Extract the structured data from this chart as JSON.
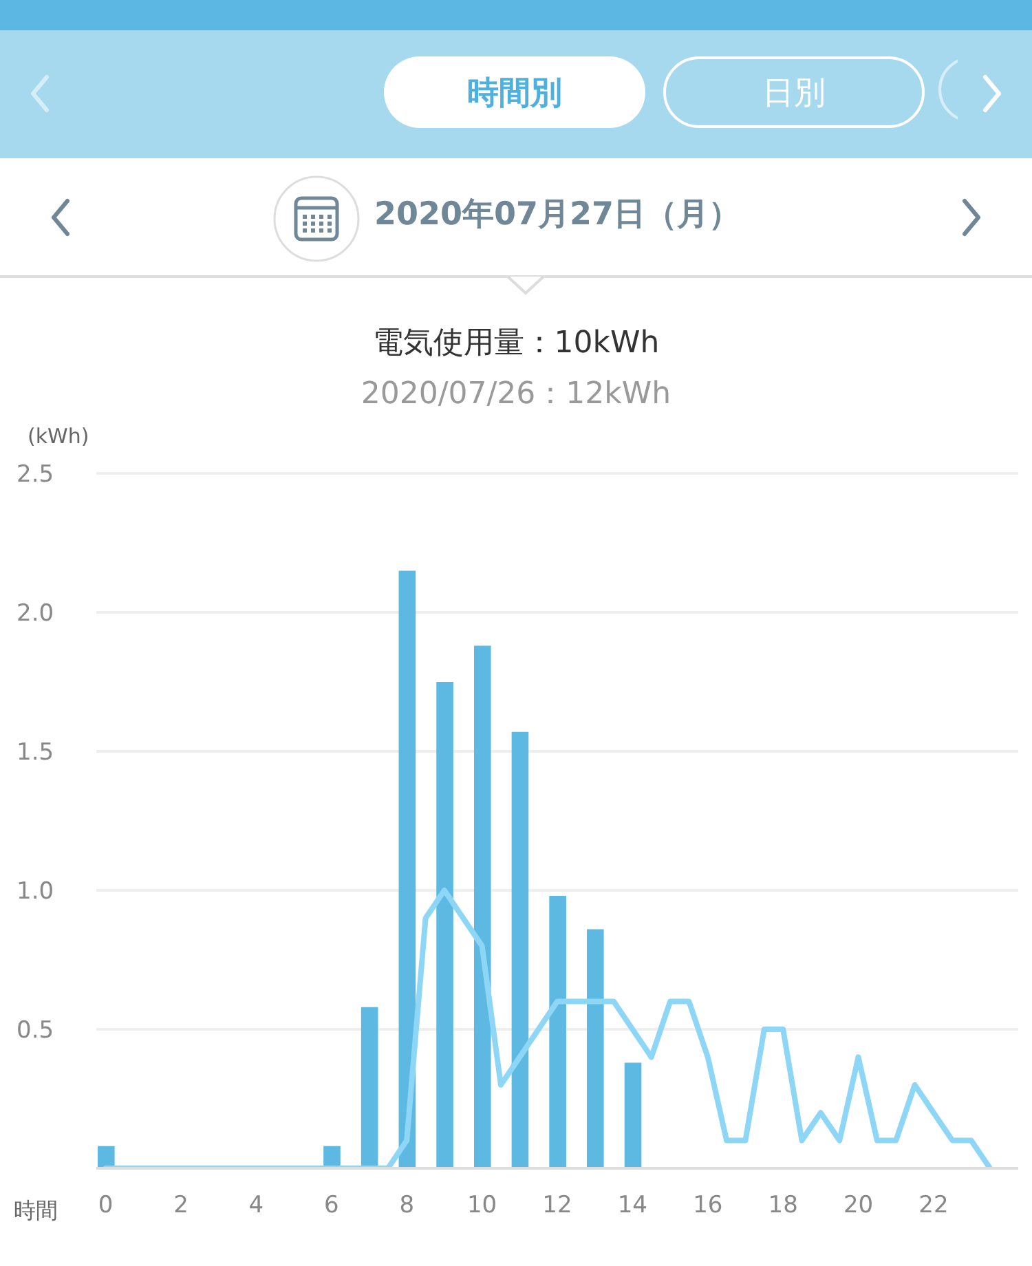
{
  "chart_data": {
    "type": "bar",
    "title": "電気使用量：10kWh",
    "subtitle": "2020/07/26：12kWh",
    "xlabel": "時間",
    "ylabel": "(kWh)",
    "annotations": [
      "時間別",
      "日別",
      "2020年07月27日（月）"
    ],
    "xlim": [
      -0.25,
      24.25
    ],
    "xticks": [
      0,
      2,
      4,
      6,
      8,
      10,
      12,
      14,
      16,
      18,
      20,
      22
    ],
    "ylim": [
      0,
      2.5
    ],
    "yticks": [
      {
        "value": 0,
        "label": null
      },
      {
        "value": 0.5,
        "label": "0.5"
      },
      {
        "value": 1,
        "label": "1.0"
      },
      {
        "value": 1.5,
        "label": "1.5"
      },
      {
        "value": 2,
        "label": "2.0"
      },
      {
        "value": 2.5,
        "label": "2.5"
      }
    ],
    "grid": "y",
    "series": [
      {
        "color": "#5db9e2",
        "x": [
          0,
          1,
          2,
          3,
          4,
          5,
          6,
          7,
          8,
          9,
          10,
          11,
          12,
          13,
          14
        ],
        "values": [
          0.08,
          0,
          0,
          0,
          0,
          0,
          0.08,
          0.58,
          2.15,
          1.75,
          1.88,
          1.57,
          0.98,
          0.86,
          0.38
        ]
      },
      {
        "type": "line",
        "color": "#8dd6f5",
        "x": [
          0,
          0.5,
          1,
          1.5,
          2,
          2.5,
          3,
          3.5,
          4,
          4.5,
          5,
          5.5,
          6,
          6.5,
          7,
          7.5,
          8,
          8.5,
          9,
          9.5,
          10,
          10.5,
          11,
          11.5,
          12,
          12.5,
          13,
          13.5,
          14,
          14.5,
          15,
          15.5,
          16,
          16.5,
          17,
          17.5,
          18,
          18.5,
          19,
          19.5,
          20,
          20.5,
          21,
          21.5,
          22,
          22.5,
          23,
          23.5
        ],
        "values": [
          0,
          0,
          0,
          0,
          0,
          0,
          0,
          0,
          0,
          0,
          0,
          0,
          0,
          0,
          0,
          0,
          0.1,
          0.9,
          1.0,
          0.9,
          0.8,
          0.3,
          0.4,
          0.5,
          0.6,
          0.6,
          0.6,
          0.6,
          0.5,
          0.4,
          0.6,
          0.6,
          0.4,
          0.1,
          0.1,
          0.5,
          0.5,
          0.1,
          0.2,
          0.1,
          0.4,
          0.1,
          0.1,
          0.3,
          0.2,
          0.1,
          0.1,
          0
        ]
      }
    ]
  }
}
